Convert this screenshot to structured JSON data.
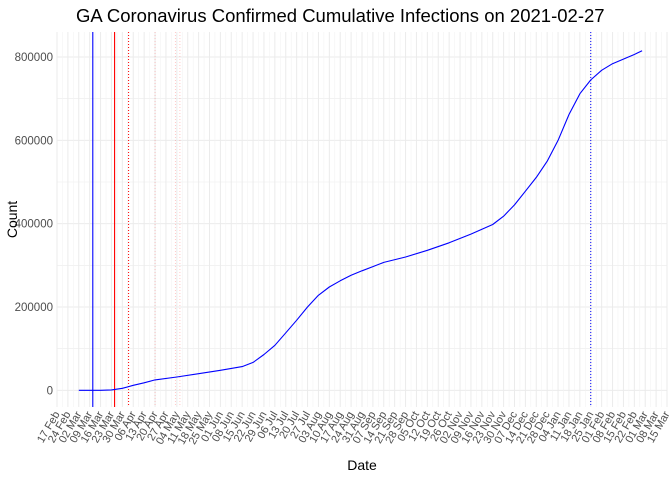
{
  "chart_data": {
    "type": "line",
    "title": "GA Coronavirus Confirmed Cumulative Infections on 2021-02-27",
    "xlabel": "Date",
    "ylabel": "Count",
    "xlim": [
      "2020-02-17",
      "2021-03-15"
    ],
    "ylim": [
      -40000,
      860000
    ],
    "grid": true,
    "legend": "none",
    "y_ticks": [
      0,
      200000,
      400000,
      600000,
      800000
    ],
    "y_tick_labels": [
      "0",
      "200000",
      "400000",
      "600000",
      "800000"
    ],
    "x_ticks": [
      "2020-02-17",
      "2020-02-24",
      "2020-03-02",
      "2020-03-09",
      "2020-03-16",
      "2020-03-23",
      "2020-03-30",
      "2020-04-06",
      "2020-04-13",
      "2020-04-20",
      "2020-04-27",
      "2020-05-04",
      "2020-05-11",
      "2020-05-18",
      "2020-05-25",
      "2020-06-01",
      "2020-06-08",
      "2020-06-15",
      "2020-06-22",
      "2020-06-29",
      "2020-07-06",
      "2020-07-13",
      "2020-07-20",
      "2020-07-27",
      "2020-08-03",
      "2020-08-10",
      "2020-08-17",
      "2020-08-24",
      "2020-08-31",
      "2020-09-07",
      "2020-09-14",
      "2020-09-21",
      "2020-09-28",
      "2020-10-05",
      "2020-10-12",
      "2020-10-19",
      "2020-10-26",
      "2020-11-02",
      "2020-11-09",
      "2020-11-16",
      "2020-11-23",
      "2020-11-30",
      "2020-12-07",
      "2020-12-14",
      "2020-12-21",
      "2020-12-28",
      "2021-01-04",
      "2021-01-11",
      "2021-01-18",
      "2021-01-25",
      "2021-02-01",
      "2021-02-08",
      "2021-02-15",
      "2021-02-22",
      "2021-03-01",
      "2021-03-08",
      "2021-03-15"
    ],
    "x_tick_labels": [
      "17 Feb",
      "24 Feb",
      "02 Mar",
      "09 Mar",
      "16 Mar",
      "23 Mar",
      "30 Mar",
      "06 Apr",
      "13 Apr",
      "20 Apr",
      "27 Apr",
      "04 May",
      "11 May",
      "18 May",
      "25 May",
      "01 Jun",
      "08 Jun",
      "15 Jun",
      "22 Jun",
      "29 Jun",
      "06 Jul",
      "13 Jul",
      "20 Jul",
      "27 Jul",
      "03 Aug",
      "10 Aug",
      "17 Aug",
      "24 Aug",
      "31 Aug",
      "07 Sep",
      "14 Sep",
      "21 Sep",
      "28 Sep",
      "05 Oct",
      "12 Oct",
      "19 Oct",
      "26 Oct",
      "02 Nov",
      "09 Nov",
      "16 Nov",
      "23 Nov",
      "30 Nov",
      "07 Dec",
      "14 Dec",
      "21 Dec",
      "28 Dec",
      "04 Jan",
      "11 Jan",
      "18 Jan",
      "25 Jan",
      "01 Feb",
      "08 Feb",
      "15 Feb",
      "22 Feb",
      "01 Mar",
      "08 Mar",
      "15 Mar"
    ],
    "series": [
      {
        "color": "#0000ff",
        "x": [
          "2020-03-02",
          "2020-03-16",
          "2020-03-23",
          "2020-03-30",
          "2020-04-06",
          "2020-04-13",
          "2020-04-20",
          "2020-05-04",
          "2020-05-18",
          "2020-06-01",
          "2020-06-15",
          "2020-06-22",
          "2020-06-29",
          "2020-07-06",
          "2020-07-13",
          "2020-07-20",
          "2020-07-27",
          "2020-08-03",
          "2020-08-10",
          "2020-08-17",
          "2020-08-24",
          "2020-08-31",
          "2020-09-07",
          "2020-09-14",
          "2020-09-28",
          "2020-10-12",
          "2020-10-26",
          "2020-11-09",
          "2020-11-23",
          "2020-11-30",
          "2020-12-07",
          "2020-12-14",
          "2020-12-21",
          "2020-12-28",
          "2021-01-04",
          "2021-01-11",
          "2021-01-18",
          "2021-01-25",
          "2021-02-01",
          "2021-02-08",
          "2021-02-15",
          "2021-02-22",
          "2021-02-27"
        ],
        "values": [
          0,
          0,
          1000,
          5000,
          12000,
          18000,
          25000,
          32000,
          40000,
          48000,
          57000,
          67000,
          86000,
          108000,
          138000,
          168000,
          200000,
          228000,
          248000,
          263000,
          276000,
          287000,
          297000,
          307000,
          320000,
          336000,
          354000,
          375000,
          398000,
          418000,
          445000,
          478000,
          511000,
          550000,
          600000,
          662000,
          712000,
          745000,
          768000,
          784000,
          795000,
          806000,
          815000
        ]
      }
    ],
    "annotations": {
      "vlines_solid": [
        {
          "x": "2020-03-11",
          "color": "#0000ff"
        },
        {
          "x": "2020-03-25",
          "color": "#ff0000"
        }
      ],
      "vlines_dotted": [
        {
          "x": "2020-04-03",
          "color": "#ff0000"
        },
        {
          "x": "2021-01-25",
          "color": "#0000ff"
        }
      ],
      "vlines_faint": [
        {
          "x": "2020-04-20",
          "color": "#ff0000"
        },
        {
          "x": "2020-05-03",
          "color": "#ff0000"
        },
        {
          "x": "2020-05-06",
          "color": "#ff0000"
        }
      ]
    }
  }
}
